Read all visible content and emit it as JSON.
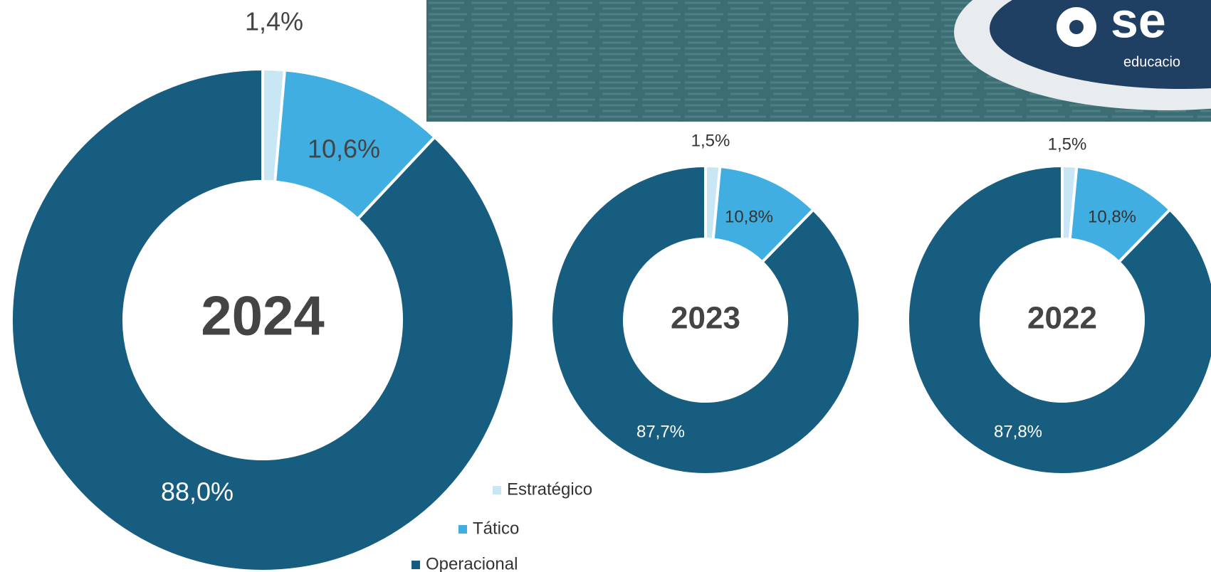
{
  "header": {
    "logo": "se",
    "tagline": "educacio"
  },
  "chart_data": [
    {
      "type": "donut",
      "title": "2024",
      "categories": [
        "Estratégico",
        "Tático",
        "Operacional"
      ],
      "values": [
        1.4,
        10.6,
        88.0
      ],
      "value_labels": [
        "1,4%",
        "10,6%",
        "88,0%"
      ],
      "colors": [
        "#c9e6f5",
        "#41aee2",
        "#175d80"
      ],
      "legend": true
    },
    {
      "type": "donut",
      "title": "2023",
      "values": [
        1.5,
        10.8,
        87.7
      ],
      "value_labels": [
        "1,5%",
        "10,8%",
        "87,7%"
      ],
      "colors": [
        "#c9e6f5",
        "#41aee2",
        "#175d80"
      ],
      "legend": false
    },
    {
      "type": "donut",
      "title": "2022",
      "values": [
        1.5,
        10.8,
        87.8
      ],
      "value_labels": [
        "1,5%",
        "10,8%",
        "87,8%"
      ],
      "colors": [
        "#c9e6f5",
        "#41aee2",
        "#175d80"
      ],
      "legend": false
    }
  ]
}
